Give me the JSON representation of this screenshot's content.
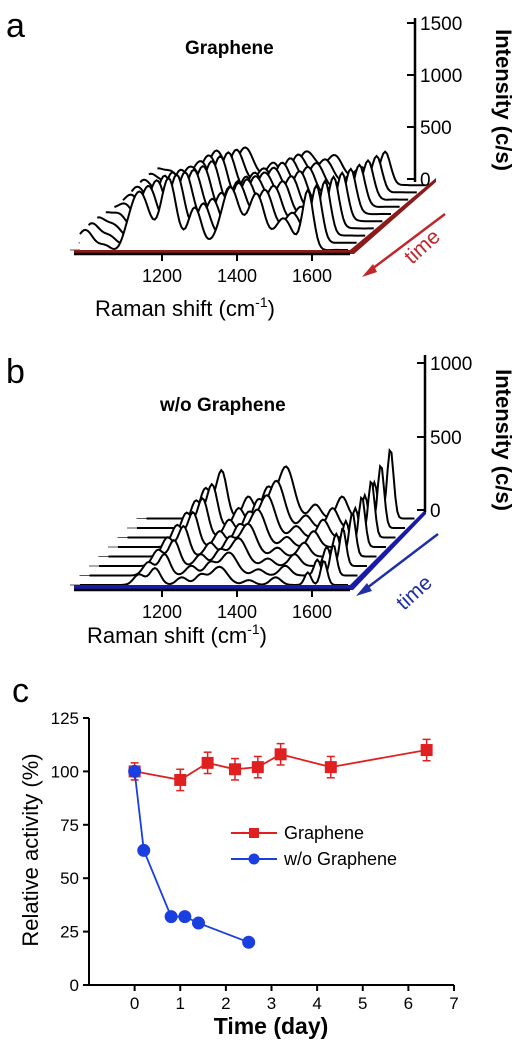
{
  "panels": [
    {
      "letter": "a",
      "title": "Graphene",
      "type": "stacked-spectra",
      "xlabel": "Raman shift (cm",
      "xlabel_sup": "-1",
      "xlabel_close": ")",
      "ylabel": "Intensity (c/s)",
      "xticks": [
        "1200",
        "1400",
        "1600"
      ],
      "zticks": [
        "0",
        "500",
        "1000",
        "1500"
      ],
      "arrow_label": "time",
      "arrow_color": "#c0272d",
      "floor_color": "#8b1a1a"
    },
    {
      "letter": "b",
      "title": "w/o Graphene",
      "type": "stacked-spectra",
      "xlabel": "Raman shift (cm",
      "xlabel_sup": "-1",
      "xlabel_close": ")",
      "ylabel": "Intensity (c/s)",
      "xticks": [
        "1200",
        "1400",
        "1600"
      ],
      "zticks": [
        "0",
        "500",
        "1000"
      ],
      "arrow_label": "time",
      "arrow_color": "#1f2fa8",
      "floor_color": "#1a1aa8"
    }
  ],
  "chart_data": {
    "type": "line",
    "panel_letter": "c",
    "xlabel": "Time (day)",
    "ylabel": "Relative activity (%)",
    "xlim": [
      -1,
      7
    ],
    "ylim": [
      0,
      125
    ],
    "xticks": [
      "0",
      "1",
      "2",
      "3",
      "4",
      "5",
      "6",
      "7"
    ],
    "yticks": [
      "0",
      "25",
      "50",
      "75",
      "100",
      "125"
    ],
    "legend_position": "center-right",
    "series": [
      {
        "name": "Graphene",
        "marker": "square",
        "color": "#e02020",
        "points": [
          {
            "x": 0,
            "y": 100,
            "err": 4
          },
          {
            "x": 1,
            "y": 96,
            "err": 5
          },
          {
            "x": 1.6,
            "y": 104,
            "err": 5
          },
          {
            "x": 2.2,
            "y": 101,
            "err": 5
          },
          {
            "x": 2.7,
            "y": 102,
            "err": 5
          },
          {
            "x": 3.2,
            "y": 108,
            "err": 5
          },
          {
            "x": 4.3,
            "y": 102,
            "err": 5
          },
          {
            "x": 6.4,
            "y": 110,
            "err": 5
          }
        ]
      },
      {
        "name": "w/o Graphene",
        "marker": "circle",
        "color": "#1a3fe0",
        "points": [
          {
            "x": 0,
            "y": 100
          },
          {
            "x": 0.2,
            "y": 63
          },
          {
            "x": 0.8,
            "y": 32
          },
          {
            "x": 1.1,
            "y": 32
          },
          {
            "x": 1.4,
            "y": 29
          },
          {
            "x": 2.5,
            "y": 20
          }
        ]
      }
    ]
  }
}
